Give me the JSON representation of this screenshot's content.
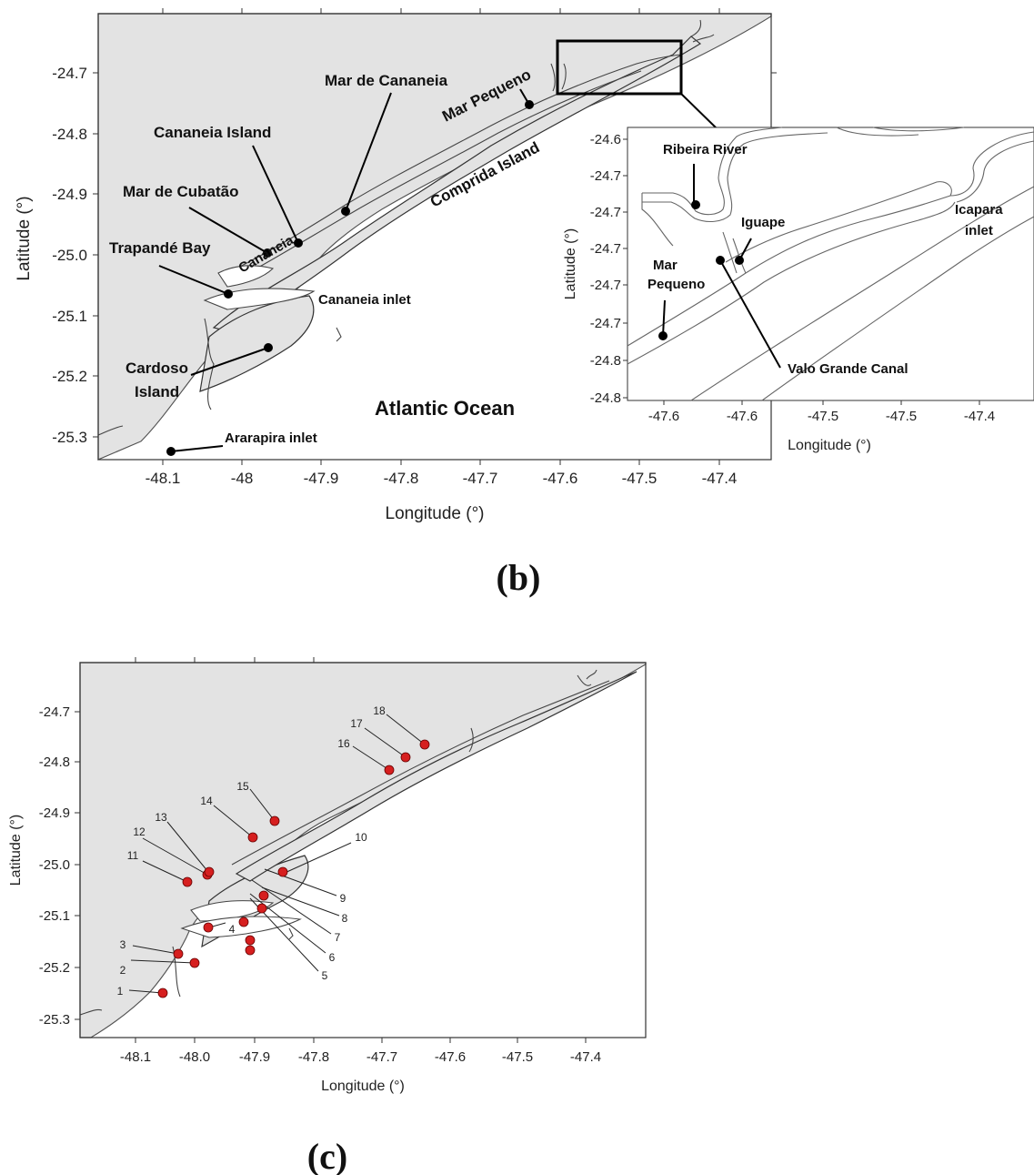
{
  "panel_b": {
    "label": "(b)",
    "xlabel": "Longitude (°)",
    "ylabel": "Latitude (°)",
    "x_ticks": [
      "-48.1",
      "-48",
      "-47.9",
      "-47.8",
      "-47.7",
      "-47.6",
      "-47.5",
      "-47.4"
    ],
    "y_ticks": [
      "-24.7",
      "-24.8",
      "-24.9",
      "-25.0",
      "-25.1",
      "-25.2",
      "-25.3"
    ],
    "places": {
      "mar_de_cananeia": "Mar de Cananeia",
      "cananeia_island": "Cananeia Island",
      "mar_de_cubatao": "Mar de Cubatão",
      "trapande_bay": "Trapandé Bay",
      "cananeia": "Cananeia",
      "cananeia_inlet": "Cananeia inlet",
      "cardoso_island_line1": "Cardoso",
      "cardoso_island_line2": "Island",
      "atlantic_ocean": "Atlantic Ocean",
      "ararapira_inlet": "Ararapira inlet",
      "mar_pequeno": "Mar Pequeno",
      "comprida_island": "Comprida Island"
    },
    "inset": {
      "xlabel": "Longitude (°)",
      "ylabel": "Latitude (°)",
      "x_ticks": [
        "-47.6",
        "-47.6",
        "-47.5",
        "-47.5",
        "-47.4"
      ],
      "y_ticks": [
        "-24.6",
        "-24.7",
        "-24.7",
        "-24.7",
        "-24.7",
        "-24.7",
        "-24.8",
        "-24.8"
      ],
      "places": {
        "ribeira_river": "Ribeira River",
        "iguape": "Iguape",
        "icapara_line1": "Icapara",
        "icapara_line2": "inlet",
        "mar_pequeno_line1": "Mar",
        "mar_pequeno_line2": "Pequeno",
        "valo_grande_canal": "Valo Grande Canal"
      }
    }
  },
  "panel_c": {
    "label": "(c)",
    "xlabel": "Longitude (°)",
    "ylabel": "Latitude (°)",
    "x_ticks": [
      "-48.1",
      "-48.0",
      "-47.9",
      "-47.8",
      "-47.7",
      "-47.6",
      "-47.5",
      "-47.4"
    ],
    "y_ticks": [
      "-24.7",
      "-24.8",
      "-24.9",
      "-25.0",
      "-25.1",
      "-25.2",
      "-25.3"
    ],
    "stations": [
      "1",
      "2",
      "3",
      "4",
      "5",
      "6",
      "7",
      "8",
      "9",
      "10",
      "11",
      "12",
      "13",
      "14",
      "15",
      "16",
      "17",
      "18"
    ],
    "station_color": "#d61f1f"
  }
}
